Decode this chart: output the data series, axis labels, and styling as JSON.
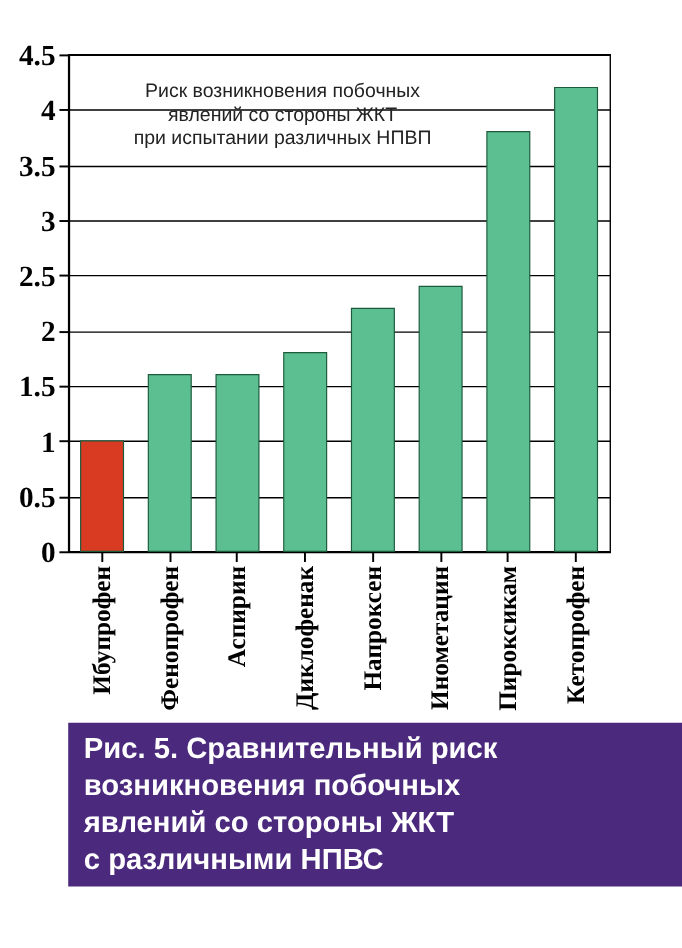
{
  "chart_data": {
    "type": "bar",
    "title": "Риск возникновения побочных\nявлений со стороны ЖКТ\nпри испытании различных НПВП",
    "categories": [
      "Ибупрофен",
      "Фенопрофен",
      "Аспирин",
      "Диклофенак",
      "Напроксен",
      "Инометацин",
      "Пироксикам",
      "Кетопрофен"
    ],
    "values": [
      1,
      1.6,
      1.6,
      1.8,
      2.2,
      2.4,
      3.8,
      4.2
    ],
    "colors": [
      "#d83a22",
      "#5cbf92",
      "#5cbf92",
      "#5cbf92",
      "#5cbf92",
      "#5cbf92",
      "#5cbf92",
      "#5cbf92"
    ],
    "ylim": [
      0,
      4.5
    ],
    "yticks": [
      0,
      0.5,
      1,
      1.5,
      2,
      2.5,
      3,
      3.5,
      4,
      4.5
    ],
    "grid": "y",
    "annotations": [
      "Рис. 5. Сравнительный риск\nвозникновения побочных\nявлений со стороны ЖКТ\nс различными НПВС"
    ]
  }
}
